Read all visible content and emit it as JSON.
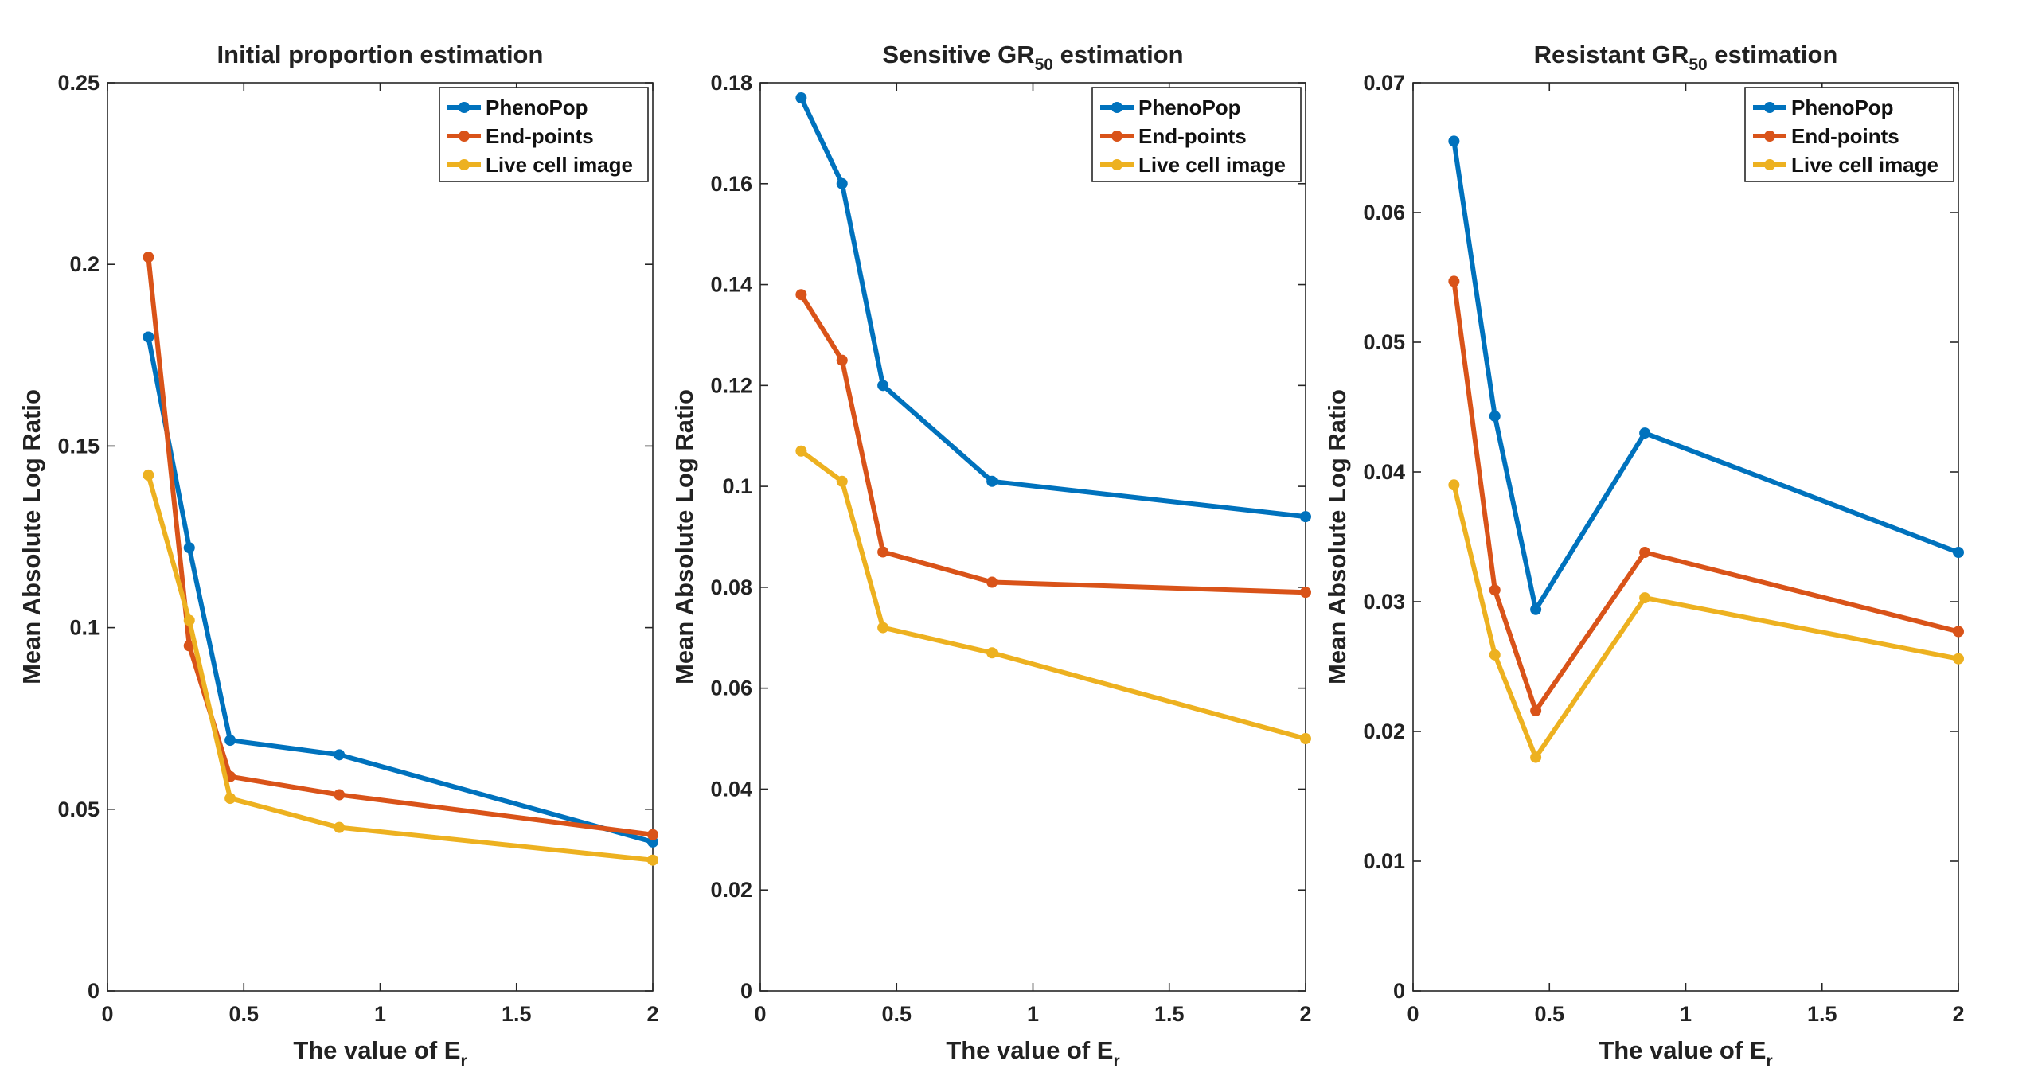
{
  "chart_data": [
    {
      "type": "line",
      "title": {
        "text": "Initial proportion estimation",
        "subscript": "",
        "suffix": ""
      },
      "xlabel": {
        "text": "The value of E",
        "subscript": "r"
      },
      "ylabel": "Mean Absolute Log Ratio",
      "xlim": [
        0,
        2
      ],
      "ylim": [
        0,
        0.25
      ],
      "xticks": [
        0,
        0.5,
        1,
        1.5,
        2
      ],
      "xtick_labels": [
        "0",
        "0.5",
        "1",
        "1.5",
        "2"
      ],
      "yticks": [
        0,
        0.05,
        0.1,
        0.15,
        0.2,
        0.25
      ],
      "ytick_labels": [
        "0",
        "0.05",
        "0.1",
        "0.15",
        "0.2",
        "0.25"
      ],
      "grid": false,
      "legend_position": "top-right",
      "x": [
        0.15,
        0.3,
        0.45,
        0.85,
        2
      ],
      "series": [
        {
          "name": "PhenoPop",
          "color": "#0072BD",
          "values": [
            0.18,
            0.122,
            0.069,
            0.065,
            0.041
          ]
        },
        {
          "name": "End-points",
          "color": "#D95319",
          "values": [
            0.202,
            0.095,
            0.059,
            0.054,
            0.043
          ]
        },
        {
          "name": "Live cell image",
          "color": "#EDB120",
          "values": [
            0.142,
            0.102,
            0.053,
            0.045,
            0.036
          ]
        }
      ]
    },
    {
      "type": "line",
      "title": {
        "text": "Sensitive GR",
        "subscript": "50",
        "suffix": " estimation"
      },
      "xlabel": {
        "text": "The value of E",
        "subscript": "r"
      },
      "ylabel": "Mean Absolute Log Ratio",
      "xlim": [
        0,
        2
      ],
      "ylim": [
        0,
        0.18
      ],
      "xticks": [
        0,
        0.5,
        1,
        1.5,
        2
      ],
      "xtick_labels": [
        "0",
        "0.5",
        "1",
        "1.5",
        "2"
      ],
      "yticks": [
        0,
        0.02,
        0.04,
        0.06,
        0.08,
        0.1,
        0.12,
        0.14,
        0.16,
        0.18
      ],
      "ytick_labels": [
        "0",
        "0.02",
        "0.04",
        "0.06",
        "0.08",
        "0.1",
        "0.12",
        "0.14",
        "0.16",
        "0.18"
      ],
      "grid": false,
      "legend_position": "top-right",
      "x": [
        0.15,
        0.3,
        0.45,
        0.85,
        2
      ],
      "series": [
        {
          "name": "PhenoPop",
          "color": "#0072BD",
          "values": [
            0.177,
            0.16,
            0.12,
            0.101,
            0.094
          ]
        },
        {
          "name": "End-points",
          "color": "#D95319",
          "values": [
            0.138,
            0.125,
            0.087,
            0.081,
            0.079
          ]
        },
        {
          "name": "Live cell image",
          "color": "#EDB120",
          "values": [
            0.107,
            0.101,
            0.072,
            0.067,
            0.05
          ]
        }
      ]
    },
    {
      "type": "line",
      "title": {
        "text": "Resistant GR",
        "subscript": "50",
        "suffix": " estimation"
      },
      "xlabel": {
        "text": "The value of E",
        "subscript": "r"
      },
      "ylabel": "Mean Absolute Log Ratio",
      "xlim": [
        0,
        2
      ],
      "ylim": [
        0,
        0.07
      ],
      "xticks": [
        0,
        0.5,
        1,
        1.5,
        2
      ],
      "xtick_labels": [
        "0",
        "0.5",
        "1",
        "1.5",
        "2"
      ],
      "yticks": [
        0,
        0.01,
        0.02,
        0.03,
        0.04,
        0.05,
        0.06,
        0.07
      ],
      "ytick_labels": [
        "0",
        "0.01",
        "0.02",
        "0.03",
        "0.04",
        "0.05",
        "0.06",
        "0.07"
      ],
      "grid": false,
      "legend_position": "top-right",
      "x": [
        0.15,
        0.3,
        0.45,
        0.85,
        2
      ],
      "series": [
        {
          "name": "PhenoPop",
          "color": "#0072BD",
          "values": [
            0.0655,
            0.0443,
            0.0294,
            0.043,
            0.0338
          ]
        },
        {
          "name": "End-points",
          "color": "#D95319",
          "values": [
            0.0547,
            0.0309,
            0.0216,
            0.0338,
            0.0277
          ]
        },
        {
          "name": "Live cell image",
          "color": "#EDB120",
          "values": [
            0.039,
            0.0259,
            0.018,
            0.0303,
            0.0256
          ]
        }
      ]
    }
  ]
}
